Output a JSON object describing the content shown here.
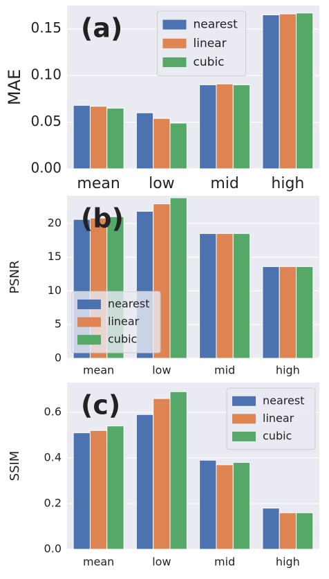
{
  "chart_data": [
    {
      "type": "bar",
      "annotation": "(a)",
      "y_label": "MAE",
      "categories": [
        "mean",
        "low",
        "mid",
        "high"
      ],
      "series": [
        {
          "name": "nearest",
          "color": "#4c72b0",
          "values": [
            0.068,
            0.06,
            0.09,
            0.165
          ]
        },
        {
          "name": "linear",
          "color": "#dd8452",
          "values": [
            0.067,
            0.054,
            0.091,
            0.166
          ]
        },
        {
          "name": "cubic",
          "color": "#55a868",
          "values": [
            0.065,
            0.049,
            0.09,
            0.167
          ]
        }
      ],
      "ylim": [
        0,
        0.175
      ],
      "yticks": [
        {
          "value": 0,
          "label": "0.00"
        },
        0.05,
        {
          "value": 0.1,
          "label": "0.10"
        },
        0.15
      ],
      "grid": true,
      "legend": "upper center"
    },
    {
      "type": "bar",
      "annotation": "(b)",
      "y_label": "PSNR",
      "categories": [
        "mean",
        "low",
        "mid",
        "high"
      ],
      "series": [
        {
          "name": "nearest",
          "color": "#4c72b0",
          "values": [
            20.6,
            21.8,
            18.5,
            13.6
          ]
        },
        {
          "name": "linear",
          "color": "#dd8452",
          "values": [
            20.8,
            22.9,
            18.5,
            13.6
          ]
        },
        {
          "name": "cubic",
          "color": "#55a868",
          "values": [
            21.0,
            23.8,
            18.5,
            13.6
          ]
        }
      ],
      "ylim": [
        0,
        24.1
      ],
      "yticks": [
        0,
        5,
        10,
        15,
        20
      ],
      "grid": true,
      "legend": "lower left"
    },
    {
      "type": "bar",
      "annotation": "(c)",
      "y_label": "SSIM",
      "categories": [
        "mean",
        "low",
        "mid",
        "high"
      ],
      "series": [
        {
          "name": "nearest",
          "color": "#4c72b0",
          "values": [
            0.51,
            0.59,
            0.39,
            0.18
          ]
        },
        {
          "name": "linear",
          "color": "#dd8452",
          "values": [
            0.52,
            0.66,
            0.37,
            0.16
          ]
        },
        {
          "name": "cubic",
          "color": "#55a868",
          "values": [
            0.54,
            0.69,
            0.38,
            0.16
          ]
        }
      ],
      "ylim": [
        0,
        0.73
      ],
      "yticks": [
        {
          "value": 0,
          "label": "0.0"
        },
        0.2,
        0.4,
        0.6
      ],
      "grid": true,
      "legend": "upper right"
    }
  ]
}
